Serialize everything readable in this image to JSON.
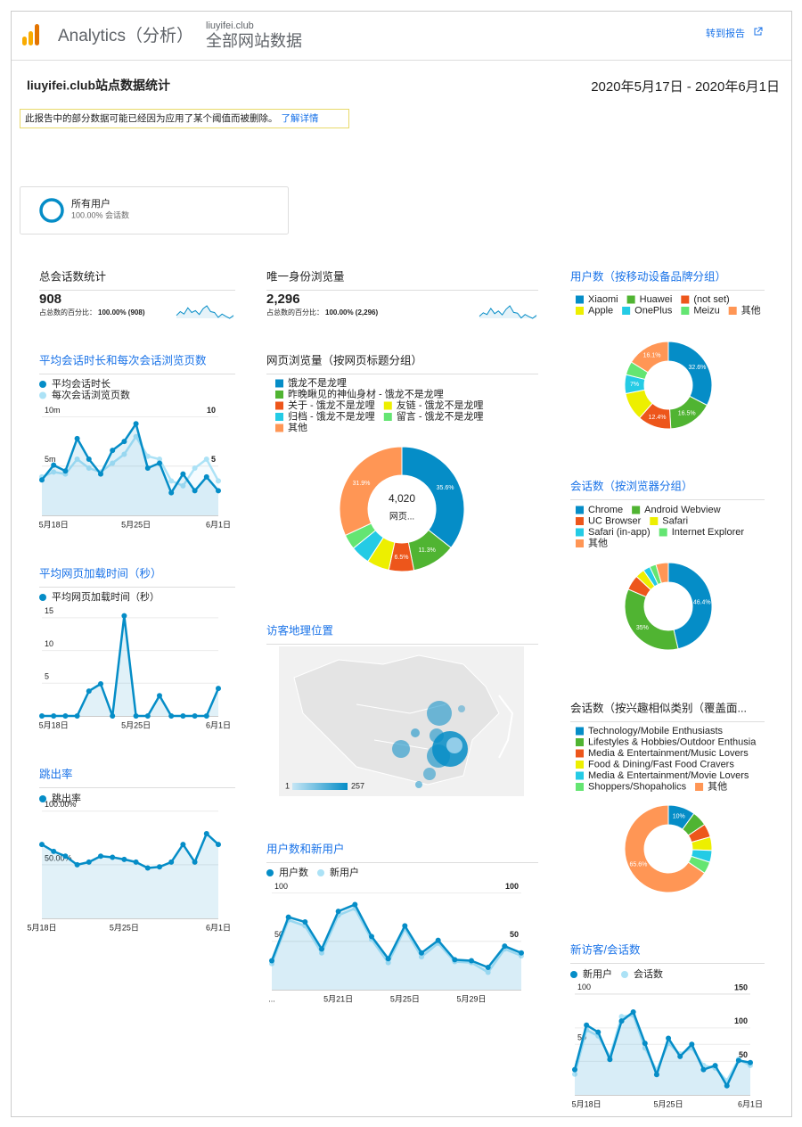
{
  "header": {
    "product": "Analytics（分析）",
    "account": "liuyifei.club",
    "view": "全部网站数据",
    "link": "转到报告"
  },
  "report": {
    "title": "liuyifei.club站点数据统计",
    "date_range": "2020年5月17日 - 2020年6月1日",
    "notice": "此报告中的部分数据可能已经因为应用了某个阈值而被删除。",
    "notice_link": "了解详情"
  },
  "segment": {
    "name": "所有用户",
    "detail": "100.00% 会话数"
  },
  "widgets": [
    {
      "type": "scorecard",
      "title": "总会话数统计",
      "value": "908",
      "pct_label": "占总数的百分比：",
      "pct": "100.00% (908)",
      "color": "#058dc7",
      "sparkline": [
        52,
        60,
        55,
        68,
        58,
        62,
        54,
        66,
        72,
        60,
        58,
        48,
        55,
        50,
        46,
        52
      ]
    },
    {
      "type": "line",
      "title": "平均会话时长和每次会话浏览页数",
      "categories": [
        null,
        "5月18日",
        null,
        null,
        null,
        null,
        null,
        null,
        "5月25日",
        null,
        null,
        null,
        null,
        null,
        null,
        "6月1日"
      ],
      "ylim": [
        0,
        10.5
      ],
      "yticks": [
        {
          "value": 10,
          "label": "10m"
        },
        {
          "value": 5,
          "label": "5m"
        }
      ],
      "y2lim": [
        0,
        10.5
      ],
      "y2ticks": [
        10,
        5
      ],
      "series": [
        {
          "name": "平均会话时长",
          "color": "#058dc7",
          "values": [
            3.6,
            5.1,
            4.5,
            7.8,
            5.7,
            4.2,
            6.6,
            7.5,
            9.3,
            4.8,
            5.3,
            2.3,
            4.2,
            2.5,
            3.9,
            2.5
          ]
        },
        {
          "name": "每次会话浏览页数",
          "color": "#ace2f6",
          "axis": "y2",
          "values": [
            3.9,
            4.4,
            4.2,
            5.7,
            4.8,
            4.4,
            5.3,
            6.2,
            8.0,
            6.0,
            5.7,
            3.5,
            3.0,
            4.8,
            5.7,
            3.5
          ]
        }
      ]
    },
    {
      "type": "line",
      "title": "平均网页加载时间（秒）",
      "categories": [
        null,
        "5月18日",
        null,
        null,
        null,
        null,
        null,
        null,
        "5月25日",
        null,
        null,
        null,
        null,
        null,
        null,
        "6月1日"
      ],
      "ylim": [
        0,
        15.8
      ],
      "yticks": [
        15,
        10,
        5
      ],
      "series": [
        {
          "name": "平均网页加载时间（秒）",
          "color": "#058dc7",
          "values": [
            0,
            0,
            0,
            0,
            3.8,
            4.9,
            0,
            15.3,
            0,
            0,
            3.1,
            0,
            0,
            0,
            0,
            4.2
          ]
        }
      ]
    },
    {
      "type": "line",
      "title": "跳出率",
      "categories": [
        "5月18日",
        null,
        null,
        null,
        null,
        null,
        null,
        "5月25日",
        null,
        null,
        null,
        null,
        null,
        null,
        null,
        "6月1日"
      ],
      "ylim": [
        0,
        104
      ],
      "yticks": [
        {
          "value": 100,
          "label": "100.00%"
        },
        {
          "value": 50,
          "label": "50.00%"
        }
      ],
      "series": [
        {
          "name": "跳出率",
          "color": "#058dc7",
          "values": [
            69,
            62.5,
            58,
            50,
            52.5,
            58,
            57,
            55,
            52.5,
            47,
            48,
            52.5,
            69,
            52.5,
            79,
            69
          ]
        }
      ]
    },
    {
      "type": "scorecard",
      "title": "唯一身份浏览量",
      "value": "2,296",
      "pct_label": "占总数的百分比：",
      "pct": "100.00% (2,296)",
      "color": "#058dc7",
      "sparkline": [
        130,
        150,
        140,
        175,
        145,
        160,
        138,
        170,
        190,
        152,
        148,
        120,
        140,
        128,
        118,
        135
      ]
    },
    {
      "type": "donut",
      "title": "网页浏览量（按网页标题分组）",
      "center_value": "4,020",
      "center_label": "网页...",
      "categories": [
        "饿龙不是龙哩",
        "昨晚瞅见的神仙身材 - 饿龙不是龙哩",
        "关于 - 饿龙不是龙哩",
        "友链 - 饿龙不是龙哩",
        "归档 - 饿龙不是龙哩",
        "留言 - 饿龙不是龙哩",
        "其他"
      ],
      "values": [
        35.6,
        11.3,
        6.5,
        5.8,
        5.0,
        3.9,
        31.9
      ],
      "value_labels": [
        "35.6%",
        "11.3%",
        "6.5%",
        null,
        null,
        null,
        "31.9%"
      ],
      "colors": [
        "#058dc7",
        "#50b432",
        "#ed561b",
        "#edef00",
        "#24cbe5",
        "#64e572",
        "#ff9655"
      ]
    },
    {
      "type": "map",
      "title": "访客地理位置",
      "legend_min": 1,
      "legend_max": 257
    },
    {
      "type": "line",
      "title": "用户数和新用户",
      "categories": [
        "...",
        null,
        null,
        null,
        "5月21日",
        null,
        null,
        null,
        "5月25日",
        null,
        null,
        null,
        "5月29日",
        null,
        null,
        null
      ],
      "ylim": [
        0,
        106
      ],
      "yticks": [
        100,
        50
      ],
      "y2lim": [
        0,
        106
      ],
      "y2ticks": [
        100,
        50
      ],
      "series": [
        {
          "name": "用户数",
          "color": "#058dc7",
          "values": [
            30,
            75,
            70,
            42,
            81,
            88,
            55,
            32,
            66,
            38,
            51,
            31,
            30,
            23,
            45,
            38
          ]
        },
        {
          "name": "新用户",
          "color": "#ace2f6",
          "axis": "y2",
          "values": [
            27,
            72,
            66,
            38,
            77,
            84,
            52,
            28,
            63,
            34,
            48,
            29,
            28,
            18,
            42,
            35
          ]
        }
      ]
    },
    {
      "type": "donut",
      "title": "用户数（按移动设备品牌分组）",
      "categories": [
        "Xiaomi",
        "Huawei",
        "(not set)",
        "Apple",
        "OnePlus",
        "Meizu",
        "其他"
      ],
      "values": [
        32.6,
        16.5,
        12.4,
        10.4,
        7,
        5,
        16.1
      ],
      "value_labels": [
        "32.6%",
        "16.5%",
        "12.4%",
        null,
        "7%",
        null,
        "16.1%"
      ],
      "colors": [
        "#058dc7",
        "#50b432",
        "#ed561b",
        "#edef00",
        "#24cbe5",
        "#64e572",
        "#ff9655"
      ]
    },
    {
      "type": "donut",
      "title": "会话数（按浏览器分组）",
      "categories": [
        "Chrome",
        "Android Webview",
        "UC Browser",
        "Safari",
        "Safari (in-app)",
        "Internet Explorer",
        "其他"
      ],
      "values": [
        46.4,
        35,
        5.6,
        3.4,
        2.6,
        2.4,
        4.6
      ],
      "value_labels": [
        "46.4%",
        "35%",
        null,
        null,
        null,
        null,
        null
      ],
      "colors": [
        "#058dc7",
        "#50b432",
        "#ed561b",
        "#edef00",
        "#24cbe5",
        "#64e572",
        "#ff9655"
      ]
    },
    {
      "type": "donut",
      "title": "会话数（按兴趣相似类别（覆盖面...",
      "categories": [
        "Technology/Mobile Enthusiasts",
        "Lifestyles & Hobbies/Outdoor Enthusia",
        "Media & Entertainment/Music Lovers",
        "Food & Dining/Fast Food Cravers",
        "Media & Entertainment/Movie Lovers",
        "Shoppers/Shopaholics",
        "其他"
      ],
      "values": [
        10,
        5.6,
        5,
        5,
        4.4,
        4.4,
        65.6
      ],
      "value_labels": [
        "10%",
        null,
        null,
        null,
        null,
        null,
        "65.6%"
      ],
      "colors": [
        "#058dc7",
        "#50b432",
        "#ed561b",
        "#edef00",
        "#24cbe5",
        "#64e572",
        "#ff9655"
      ]
    },
    {
      "type": "line",
      "title": "新访客/会话数",
      "categories": [
        null,
        "5月18日",
        null,
        null,
        null,
        null,
        null,
        null,
        "5月25日",
        null,
        null,
        null,
        null,
        null,
        null,
        "6月1日"
      ],
      "ylim": [
        0,
        104
      ],
      "yticks": [
        100,
        50
      ],
      "y2lim": [
        0,
        157
      ],
      "y2ticks": [
        150,
        100,
        50
      ],
      "series": [
        {
          "name": "新用户",
          "color": "#058dc7",
          "values": [
            25,
            69,
            62,
            35,
            73,
            82,
            51,
            20,
            56,
            38,
            50,
            25,
            29,
            9,
            34,
            32
          ]
        },
        {
          "name": "会话数",
          "color": "#ace2f6",
          "axis": "y2",
          "values": [
            31,
            97,
            88,
            57,
            117,
            119,
            70,
            37,
            77,
            61,
            70,
            44,
            40,
            21,
            53,
            44
          ]
        }
      ]
    }
  ]
}
